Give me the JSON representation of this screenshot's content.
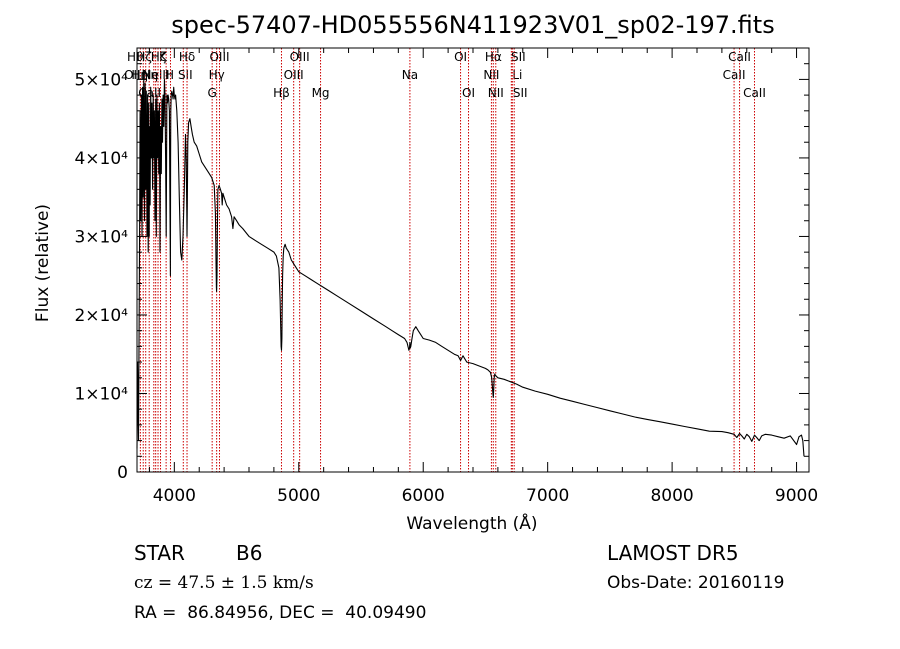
{
  "chart_data": {
    "type": "line",
    "title": "spec-57407-HD055556N411923V01_sp02-197.fits",
    "xlabel": "Wavelength (Å)",
    "ylabel": "Flux (relative)",
    "xlim": [
      3700,
      9100
    ],
    "ylim": [
      0,
      54000
    ],
    "grid": false,
    "x_ticks": [
      {
        "value": 4000,
        "label": "4000"
      },
      {
        "value": 5000,
        "label": "5000"
      },
      {
        "value": 6000,
        "label": "6000"
      },
      {
        "value": 7000,
        "label": "7000"
      },
      {
        "value": 8000,
        "label": "8000"
      },
      {
        "value": 9000,
        "label": "9000"
      }
    ],
    "y_ticks": [
      {
        "value": 0,
        "label": "0"
      },
      {
        "value": 10000,
        "label": "1×10⁴"
      },
      {
        "value": 20000,
        "label": "2×10⁴"
      },
      {
        "value": 30000,
        "label": "3×10⁴"
      },
      {
        "value": 40000,
        "label": "4×10⁴"
      },
      {
        "value": 50000,
        "label": "5×10⁴"
      }
    ],
    "series": [
      {
        "x": [
          3700,
          3705,
          3712,
          3720,
          3725,
          3730,
          3735,
          3740,
          3745,
          3750,
          3755,
          3760,
          3765,
          3770,
          3775,
          3780,
          3785,
          3790,
          3795,
          3798,
          3800,
          3805,
          3810,
          3815,
          3820,
          3825,
          3830,
          3835,
          3840,
          3845,
          3850,
          3855,
          3860,
          3865,
          3870,
          3875,
          3880,
          3885,
          3890,
          3895,
          3900,
          3905,
          3910,
          3915,
          3920,
          3925,
          3930,
          3935,
          3940,
          3945,
          3950,
          3955,
          3960,
          3965,
          3968,
          3970,
          3972,
          3975,
          3980,
          3985,
          3990,
          3995,
          4000,
          4005,
          4010,
          4020,
          4030,
          4040,
          4050,
          4060,
          4070,
          4080,
          4090,
          4095,
          4100,
          4102,
          4104,
          4108,
          4115,
          4125,
          4135,
          4145,
          4160,
          4180,
          4200,
          4220,
          4240,
          4260,
          4280,
          4300,
          4320,
          4330,
          4335,
          4338,
          4340,
          4343,
          4346,
          4350,
          4360,
          4370,
          4380,
          4385,
          4390,
          4400,
          4420,
          4440,
          4460,
          4471,
          4480,
          4500,
          4520,
          4550,
          4600,
          4650,
          4700,
          4750,
          4800,
          4820,
          4840,
          4850,
          4855,
          4858,
          4861,
          4864,
          4867,
          4870,
          4875,
          4880,
          4890,
          4900,
          4920,
          4940,
          4960,
          4980,
          5000,
          5050,
          5100,
          5150,
          5200,
          5250,
          5300,
          5400,
          5500,
          5600,
          5700,
          5750,
          5800,
          5850,
          5870,
          5885,
          5890,
          5893,
          5896,
          5900,
          5910,
          5920,
          5940,
          5960,
          5980,
          6000,
          6050,
          6100,
          6150,
          6200,
          6250,
          6280,
          6300,
          6320,
          6350,
          6400,
          6450,
          6500,
          6520,
          6540,
          6550,
          6555,
          6560,
          6563,
          6566,
          6570,
          6575,
          6580,
          6600,
          6650,
          6700,
          6750,
          6800,
          6900,
          7000,
          7100,
          7200,
          7300,
          7400,
          7500,
          7600,
          7700,
          7800,
          7900,
          8000,
          8100,
          8200,
          8300,
          8400,
          8450,
          8498,
          8520,
          8542,
          8560,
          8580,
          8600,
          8620,
          8640,
          8662,
          8680,
          8700,
          8720,
          8750,
          8800,
          8850,
          8900,
          8950,
          9000,
          9020,
          9040,
          9050,
          9060
        ],
        "y": [
          3000,
          14000,
          4000,
          28000,
          46000,
          32000,
          48000,
          30000,
          49000,
          35000,
          50000,
          32000,
          49500,
          36000,
          48500,
          30000,
          48000,
          28000,
          47000,
          30000,
          44000,
          34000,
          49000,
          40000,
          47000,
          36000,
          48000,
          40000,
          46000,
          32000,
          47500,
          30000,
          48000,
          40000,
          46000,
          38000,
          47000,
          28000,
          44000,
          38000,
          47500,
          42000,
          48000,
          44000,
          50000,
          48000,
          40000,
          30000,
          48000,
          47000,
          48000,
          47500,
          46000,
          33000,
          25000,
          40000,
          46000,
          48000,
          48500,
          48000,
          47500,
          49000,
          48000,
          47500,
          48000,
          46000,
          42000,
          35000,
          28000,
          27000,
          30000,
          36000,
          43000,
          40000,
          33000,
          30000,
          34000,
          42000,
          44500,
          45000,
          44000,
          43000,
          42000,
          41500,
          40500,
          39500,
          39000,
          38500,
          38000,
          37500,
          36500,
          33000,
          27000,
          23500,
          23000,
          25000,
          31000,
          36000,
          36500,
          36000,
          35500,
          34000,
          35500,
          35000,
          34000,
          33500,
          32500,
          31000,
          32500,
          32000,
          31500,
          31000,
          30000,
          29500,
          29000,
          28500,
          28000,
          27500,
          26000,
          22000,
          18500,
          16000,
          15500,
          17000,
          21000,
          25000,
          27500,
          28500,
          29000,
          28500,
          28000,
          27000,
          26500,
          26000,
          25500,
          25000,
          24500,
          24000,
          23500,
          23000,
          22500,
          21500,
          20500,
          19500,
          18500,
          18000,
          17500,
          17000,
          16500,
          15500,
          15800,
          16500,
          15800,
          16000,
          17000,
          18000,
          18500,
          18000,
          17500,
          17000,
          16800,
          16500,
          16000,
          15500,
          15000,
          14800,
          14200,
          14800,
          14000,
          13800,
          13500,
          13200,
          13000,
          12700,
          12000,
          11000,
          10000,
          9500,
          10500,
          12000,
          12500,
          12300,
          12000,
          11800,
          11500,
          11200,
          10800,
          10300,
          9900,
          9400,
          9000,
          8600,
          8200,
          7800,
          7400,
          7000,
          6700,
          6400,
          6100,
          5800,
          5500,
          5200,
          5150,
          5000,
          4800,
          4400,
          4900,
          4600,
          4200,
          4800,
          4500,
          3900,
          4700,
          4400,
          4000,
          4600,
          4800,
          4700,
          4500,
          4300,
          4600,
          3500,
          4500,
          4700,
          4000,
          2000
        ]
      }
    ],
    "line_markers": [
      {
        "x": 3727,
        "label": "OII",
        "row": 1,
        "dx": -8
      },
      {
        "x": 3750,
        "label": "Hθ",
        "row": 0,
        "dx": -8
      },
      {
        "x": 3770,
        "label": "Hη",
        "row": 1,
        "dx": -6
      },
      {
        "x": 3798,
        "label": "Hζ",
        "row": 0,
        "dx": -5
      },
      {
        "x": 3835,
        "label": "Hη",
        "row": 1,
        "dx": -4
      },
      {
        "x": 3850,
        "label": "CaII",
        "row": 2,
        "dx": -6
      },
      {
        "x": 3869,
        "label": "NeIII",
        "row": 1,
        "dx": -2
      },
      {
        "x": 3889,
        "label": "Hζ",
        "row": 0,
        "dx": -2
      },
      {
        "x": 3934,
        "label": "K",
        "row": 0,
        "dx": -3
      },
      {
        "x": 3969,
        "label": "H",
        "row": 1,
        "dx": -1
      },
      {
        "x": 4072,
        "label": "SII",
        "row": 1,
        "dx": 2
      },
      {
        "x": 4102,
        "label": "Hδ",
        "row": 0,
        "dx": 0
      },
      {
        "x": 4304,
        "label": "G",
        "row": 2,
        "dx": 0
      },
      {
        "x": 4340,
        "label": "Hγ",
        "row": 1,
        "dx": 0
      },
      {
        "x": 4363,
        "label": "OIII",
        "row": 0,
        "dx": 0
      },
      {
        "x": 4861,
        "label": "Hβ",
        "row": 2,
        "dx": 0
      },
      {
        "x": 4959,
        "label": "OIII",
        "row": 1,
        "dx": 0
      },
      {
        "x": 5007,
        "label": "OIII",
        "row": 0,
        "dx": 0
      },
      {
        "x": 5175,
        "label": "Mg",
        "row": 2,
        "dx": 0
      },
      {
        "x": 5893,
        "label": "Na",
        "row": 1,
        "dx": 0
      },
      {
        "x": 6300,
        "label": "OI",
        "row": 0,
        "dx": 0
      },
      {
        "x": 6364,
        "label": "OI",
        "row": 2,
        "dx": 0
      },
      {
        "x": 6548,
        "label": "NII",
        "row": 1,
        "dx": 0
      },
      {
        "x": 6563,
        "label": "Hα",
        "row": 0,
        "dx": 0
      },
      {
        "x": 6583,
        "label": "NII",
        "row": 2,
        "dx": 0
      },
      {
        "x": 6708,
        "label": "Li",
        "row": 1,
        "dx": 6
      },
      {
        "x": 6716,
        "label": "SII",
        "row": 0,
        "dx": 6
      },
      {
        "x": 6731,
        "label": "SII",
        "row": 2,
        "dx": 6
      },
      {
        "x": 8498,
        "label": "CaII",
        "row": 1,
        "dx": 0
      },
      {
        "x": 8542,
        "label": "CaII",
        "row": 0,
        "dx": 0
      },
      {
        "x": 8662,
        "label": "CaII",
        "row": 2,
        "dx": 0
      }
    ],
    "marker_color": "#cc0000",
    "line_color": "#000000"
  },
  "info": {
    "object_class": "STAR",
    "subclass": "B6",
    "survey": "LAMOST DR5",
    "redshift": "cz = 47.5 ± 1.5 km/s",
    "obs_date": "Obs-Date: 20160119",
    "coords": "RA =  86.84956, DEC =  40.09490"
  }
}
